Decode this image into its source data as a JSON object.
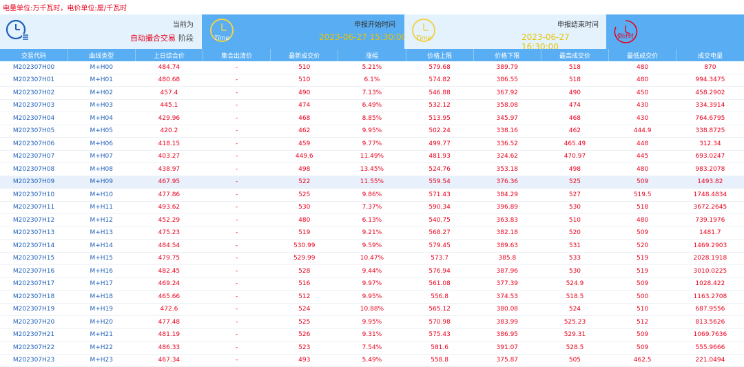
{
  "unit_note": "电量单位:万千瓦时，电价单位:厘/千瓦时",
  "banner": {
    "stage_label": "当前为",
    "stage_value": "自动撮合交易",
    "stage_suffix": "阶段",
    "start_label": "申报开始时间",
    "start_time": "2023-06-27 15:30:00",
    "end_label": "申报结束时间",
    "end_time": "2023-06-27 16:30:00",
    "time_icon_text": "Time",
    "countdown_text": "倒计时",
    "colors": {
      "banner": "#59aef3",
      "panel": "#e3f2fd",
      "time_text": "#e8c300",
      "alert": "#e8001c"
    }
  },
  "table": {
    "headers": [
      "交易代码",
      "曲线类型",
      "上日综合价",
      "集合出清价",
      "最新成交价",
      "涨幅",
      "价格上限",
      "价格下限",
      "最高成交价",
      "最低成交价",
      "成交电量"
    ],
    "rows": [
      [
        "M202307H00",
        "M+H00",
        "484.74",
        "-",
        "510",
        "5.21%",
        "579.68",
        "389.79",
        "518",
        "480",
        "870"
      ],
      [
        "M202307H01",
        "M+H01",
        "480.68",
        "-",
        "510",
        "6.1%",
        "574.82",
        "386.55",
        "518",
        "480",
        "994.3475"
      ],
      [
        "M202307H02",
        "M+H02",
        "457.4",
        "-",
        "490",
        "7.13%",
        "546.88",
        "367.92",
        "490",
        "450",
        "458.2902"
      ],
      [
        "M202307H03",
        "M+H03",
        "445.1",
        "-",
        "474",
        "6.49%",
        "532.12",
        "358.08",
        "474",
        "430",
        "334.3914"
      ],
      [
        "M202307H04",
        "M+H04",
        "429.96",
        "-",
        "468",
        "8.85%",
        "513.95",
        "345.97",
        "468",
        "430",
        "764.6795"
      ],
      [
        "M202307H05",
        "M+H05",
        "420.2",
        "-",
        "462",
        "9.95%",
        "502.24",
        "338.16",
        "462",
        "444.9",
        "338.8725"
      ],
      [
        "M202307H06",
        "M+H06",
        "418.15",
        "-",
        "459",
        "9.77%",
        "499.77",
        "336.52",
        "465.49",
        "448",
        "312.34"
      ],
      [
        "M202307H07",
        "M+H07",
        "403.27",
        "-",
        "449.6",
        "11.49%",
        "481.93",
        "324.62",
        "470.97",
        "445",
        "693.0247"
      ],
      [
        "M202307H08",
        "M+H08",
        "438.97",
        "-",
        "498",
        "13.45%",
        "524.76",
        "353.18",
        "498",
        "480",
        "983.2078"
      ],
      [
        "M202307H09",
        "M+H09",
        "467.95",
        "-",
        "522",
        "11.55%",
        "559.54",
        "376.36",
        "525",
        "509",
        "1493.82"
      ],
      [
        "M202307H10",
        "M+H10",
        "477.86",
        "-",
        "525",
        "9.86%",
        "571.43",
        "384.29",
        "527",
        "519.5",
        "1748.4834"
      ],
      [
        "M202307H11",
        "M+H11",
        "493.62",
        "-",
        "530",
        "7.37%",
        "590.34",
        "396.89",
        "530",
        "518",
        "3672.2645"
      ],
      [
        "M202307H12",
        "M+H12",
        "452.29",
        "-",
        "480",
        "6.13%",
        "540.75",
        "363.83",
        "510",
        "480",
        "739.1976"
      ],
      [
        "M202307H13",
        "M+H13",
        "475.23",
        "-",
        "519",
        "9.21%",
        "568.27",
        "382.18",
        "520",
        "509",
        "1481.7"
      ],
      [
        "M202307H14",
        "M+H14",
        "484.54",
        "-",
        "530.99",
        "9.59%",
        "579.45",
        "389.63",
        "531",
        "520",
        "1469.2903"
      ],
      [
        "M202307H15",
        "M+H15",
        "479.75",
        "-",
        "529.99",
        "10.47%",
        "573.7",
        "385.8",
        "533",
        "519",
        "2028.1918"
      ],
      [
        "M202307H16",
        "M+H16",
        "482.45",
        "-",
        "528",
        "9.44%",
        "576.94",
        "387.96",
        "530",
        "519",
        "3010.0225"
      ],
      [
        "M202307H17",
        "M+H17",
        "469.24",
        "-",
        "516",
        "9.97%",
        "561.08",
        "377.39",
        "524.9",
        "509",
        "1028.422"
      ],
      [
        "M202307H18",
        "M+H18",
        "465.66",
        "-",
        "512",
        "9.95%",
        "556.8",
        "374.53",
        "518.5",
        "500",
        "1163.2708"
      ],
      [
        "M202307H19",
        "M+H19",
        "472.6",
        "-",
        "524",
        "10.88%",
        "565.12",
        "380.08",
        "524",
        "510",
        "687.9556"
      ],
      [
        "M202307H20",
        "M+H20",
        "477.48",
        "-",
        "525",
        "9.95%",
        "570.98",
        "383.99",
        "525.23",
        "512",
        "813.5626"
      ],
      [
        "M202307H21",
        "M+H21",
        "481.19",
        "-",
        "526",
        "9.31%",
        "575.43",
        "386.95",
        "529.31",
        "509",
        "1069.7636"
      ],
      [
        "M202307H22",
        "M+H22",
        "486.33",
        "-",
        "523",
        "7.54%",
        "581.6",
        "391.07",
        "528.5",
        "509",
        "555.9666"
      ],
      [
        "M202307H23",
        "M+H23",
        "467.34",
        "-",
        "493",
        "5.49%",
        "558.8",
        "375.87",
        "505",
        "462.5",
        "221.0494"
      ]
    ],
    "highlighted_row": 9
  }
}
